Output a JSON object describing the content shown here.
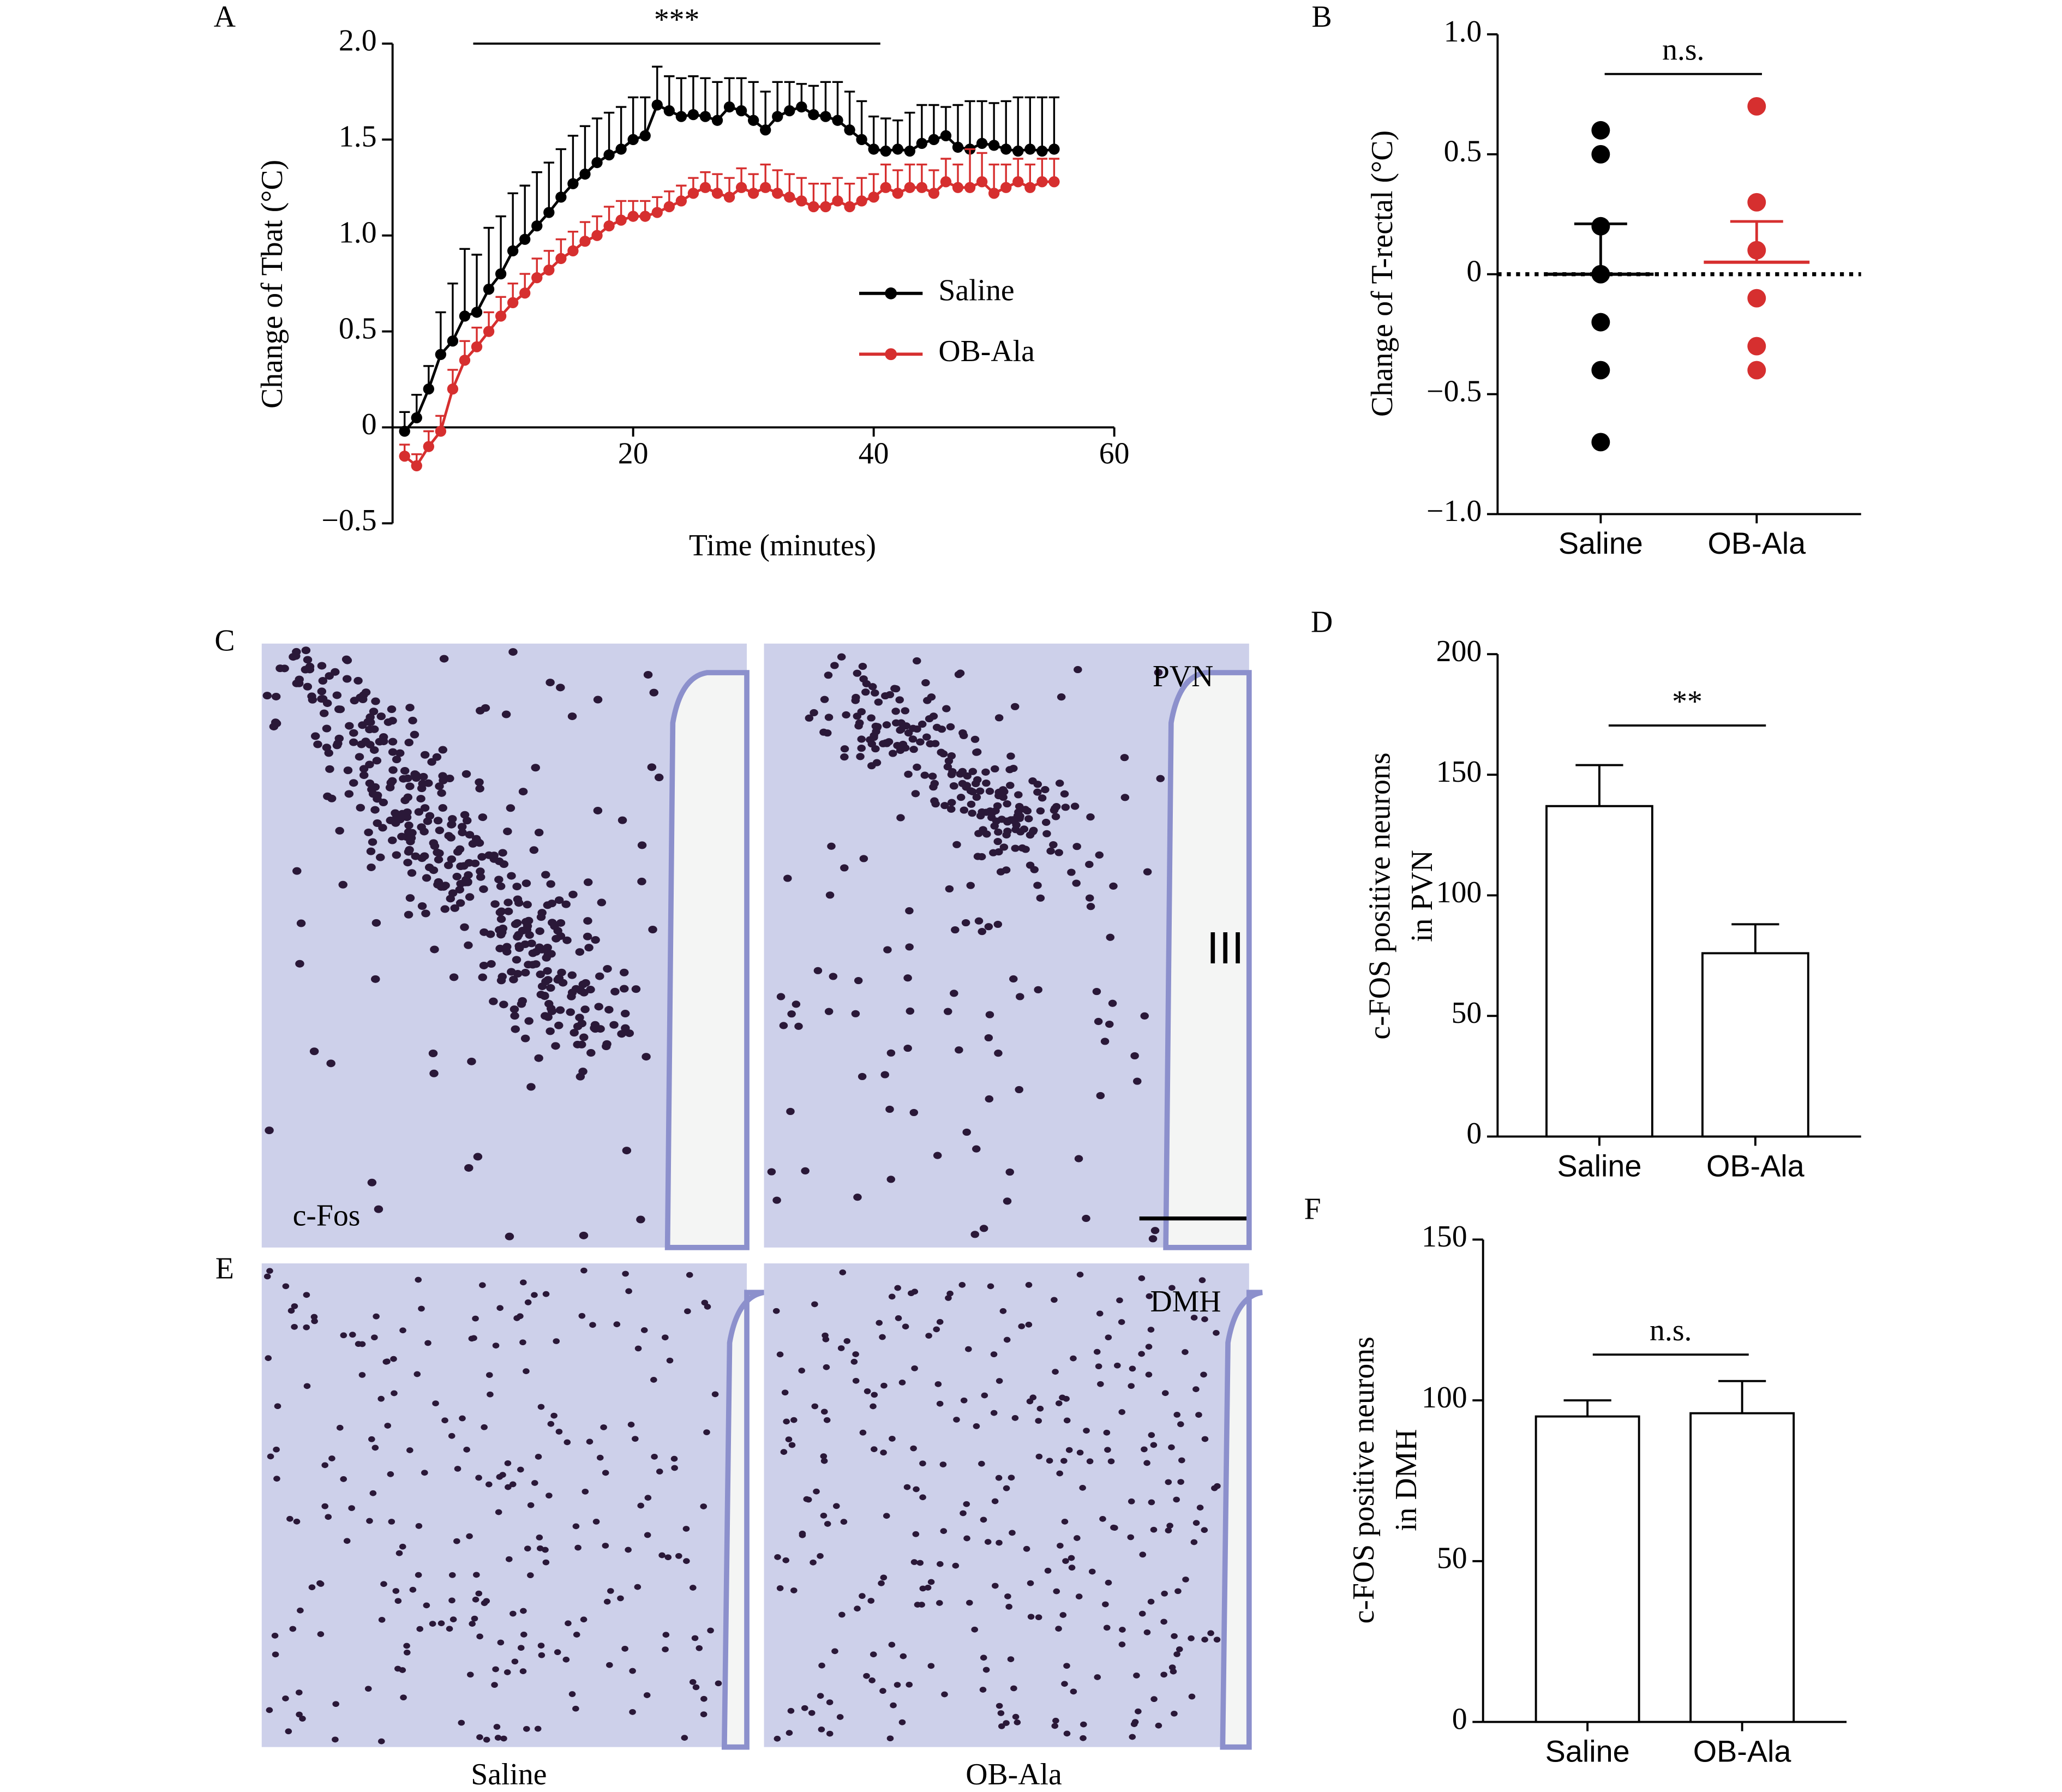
{
  "chart_data": [
    {
      "type": "line",
      "panel": "A",
      "xlabel": "Time (minutes)",
      "ylabel": "Change of Tbat (°C)",
      "significance": "***",
      "x": [
        1,
        2,
        3,
        4,
        5,
        6,
        7,
        8,
        9,
        10,
        11,
        12,
        13,
        14,
        15,
        16,
        17,
        18,
        19,
        20,
        21,
        22,
        23,
        24,
        25,
        26,
        27,
        28,
        29,
        30,
        31,
        32,
        33,
        34,
        35,
        36,
        37,
        38,
        39,
        40,
        41,
        42,
        43,
        44,
        45,
        46,
        47,
        48,
        49,
        50,
        51,
        52,
        53,
        54,
        55
      ],
      "series": [
        {
          "name": "Saline",
          "color": "#000000",
          "values": [
            -0.02,
            0.05,
            0.2,
            0.38,
            0.45,
            0.58,
            0.6,
            0.72,
            0.8,
            0.92,
            0.98,
            1.05,
            1.12,
            1.2,
            1.27,
            1.32,
            1.38,
            1.42,
            1.45,
            1.5,
            1.52,
            1.68,
            1.65,
            1.62,
            1.63,
            1.62,
            1.6,
            1.67,
            1.65,
            1.6,
            1.55,
            1.62,
            1.65,
            1.67,
            1.63,
            1.62,
            1.6,
            1.55,
            1.5,
            1.45,
            1.44,
            1.45,
            1.44,
            1.48,
            1.5,
            1.52,
            1.46,
            1.45,
            1.48,
            1.47,
            1.45,
            1.44,
            1.45,
            1.44,
            1.45
          ],
          "errors": [
            0.1,
            0.12,
            0.12,
            0.22,
            0.3,
            0.35,
            0.3,
            0.32,
            0.3,
            0.3,
            0.28,
            0.28,
            0.26,
            0.25,
            0.25,
            0.25,
            0.23,
            0.22,
            0.22,
            0.22,
            0.2,
            0.2,
            0.18,
            0.2,
            0.2,
            0.2,
            0.2,
            0.15,
            0.17,
            0.2,
            0.2,
            0.18,
            0.15,
            0.12,
            0.15,
            0.18,
            0.2,
            0.2,
            0.2,
            0.17,
            0.17,
            0.15,
            0.2,
            0.2,
            0.18,
            0.15,
            0.22,
            0.25,
            0.22,
            0.22,
            0.25,
            0.28,
            0.27,
            0.28,
            0.27
          ]
        },
        {
          "name": "OB-Ala",
          "color": "#d62f2f",
          "values": [
            -0.15,
            -0.2,
            -0.1,
            -0.02,
            0.2,
            0.35,
            0.42,
            0.5,
            0.58,
            0.65,
            0.7,
            0.78,
            0.82,
            0.88,
            0.92,
            0.97,
            1.0,
            1.05,
            1.08,
            1.1,
            1.1,
            1.12,
            1.15,
            1.18,
            1.22,
            1.25,
            1.22,
            1.2,
            1.25,
            1.22,
            1.25,
            1.22,
            1.2,
            1.18,
            1.15,
            1.15,
            1.18,
            1.15,
            1.18,
            1.2,
            1.25,
            1.22,
            1.25,
            1.25,
            1.22,
            1.28,
            1.25,
            1.25,
            1.28,
            1.22,
            1.25,
            1.28,
            1.25,
            1.28,
            1.28
          ],
          "errors": [
            0.06,
            0.06,
            0.08,
            0.08,
            0.1,
            0.1,
            0.1,
            0.1,
            0.1,
            0.1,
            0.1,
            0.1,
            0.1,
            0.1,
            0.1,
            0.1,
            0.1,
            0.1,
            0.1,
            0.08,
            0.08,
            0.08,
            0.08,
            0.08,
            0.08,
            0.08,
            0.1,
            0.1,
            0.1,
            0.1,
            0.12,
            0.12,
            0.12,
            0.12,
            0.12,
            0.12,
            0.12,
            0.12,
            0.12,
            0.12,
            0.12,
            0.12,
            0.12,
            0.12,
            0.12,
            0.12,
            0.12,
            0.2,
            0.15,
            0.15,
            0.12,
            0.12,
            0.12,
            0.12,
            0.12
          ]
        }
      ],
      "xlim": [
        0,
        60
      ],
      "xticks": [
        20,
        40,
        60
      ],
      "ylim": [
        -0.5,
        2.0
      ],
      "yticks": [
        {
          "value": -0.5,
          "label": "−0.5"
        },
        0,
        0.5,
        {
          "value": 1,
          "label": "1.0"
        },
        1.5,
        {
          "value": 2,
          "label": "2.0"
        }
      ],
      "legend": "right"
    },
    {
      "type": "dot",
      "panel": "B",
      "ylabel": "Change of T-rectal (°C)",
      "significance": "n.s.",
      "categories": [
        "Saline",
        "OB-Ala"
      ],
      "groups": [
        {
          "color": "#000000",
          "values": [
            0.6,
            0.5,
            0.2,
            0,
            -0.2,
            -0.4,
            -0.7
          ],
          "mean": 0,
          "sem": 0.21
        },
        {
          "color": "#d62f2f",
          "values": [
            0.7,
            0.3,
            0.1,
            -0.1,
            -0.3,
            -0.4
          ],
          "mean": 0.05,
          "sem": 0.17
        }
      ],
      "ylim": [
        -1,
        1
      ],
      "yticks": [
        {
          "value": -1,
          "label": "−1.0"
        },
        {
          "value": -0.5,
          "label": "−0.5"
        },
        0,
        0.5,
        {
          "value": 1,
          "label": "1.0"
        }
      ]
    },
    {
      "type": "bar",
      "panel": "D",
      "ylabel": [
        "c-FOS positive neurons",
        "in PVN"
      ],
      "significance": "**",
      "categories": [
        "Saline",
        "OB-Ala"
      ],
      "values": [
        137,
        76
      ],
      "errors": [
        17,
        12
      ],
      "color": "#ffffff",
      "ylim": [
        0,
        200
      ],
      "yticks": [
        0,
        50,
        100,
        150,
        200
      ]
    },
    {
      "type": "bar",
      "panel": "F",
      "ylabel": [
        "c-FOS positive neurons",
        "in DMH"
      ],
      "significance": "n.s.",
      "categories": [
        "Saline",
        "OB-Ala"
      ],
      "values": [
        95,
        96
      ],
      "errors": [
        5,
        10
      ],
      "color": "#ffffff",
      "ylim": [
        0,
        150
      ],
      "yticks": [
        0,
        50,
        100,
        150
      ]
    }
  ],
  "micrographs": {
    "C": {
      "panel": "C",
      "corner_label": "c-Fos",
      "region_label": "PVN",
      "ventricle_label": "III"
    },
    "E": {
      "panel": "E",
      "region_label": "DMH"
    },
    "captions": [
      "Saline",
      "OB-Ala"
    ]
  }
}
